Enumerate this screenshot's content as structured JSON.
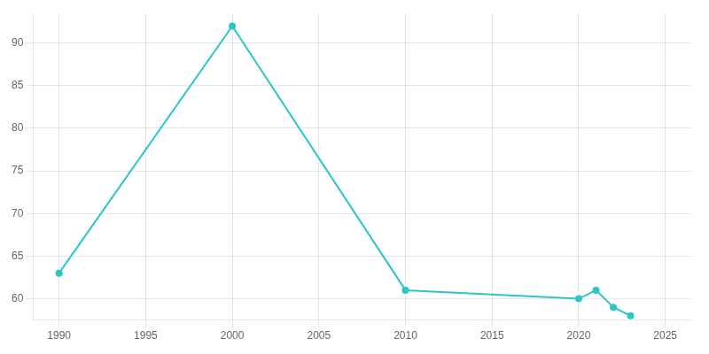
{
  "chart_data": {
    "type": "line",
    "x": [
      1990,
      2000,
      2010,
      2020,
      2021,
      2022,
      2023
    ],
    "values": [
      63,
      92,
      61,
      60,
      61,
      59,
      58
    ],
    "color": "#2DC5C5",
    "marker": "circle",
    "xlim": [
      1988.5,
      2026.5
    ],
    "ylim": [
      57.5,
      93.5
    ],
    "xticks": [
      1990,
      1995,
      2000,
      2005,
      2010,
      2015,
      2020,
      2025
    ],
    "yticks": [
      60,
      65,
      70,
      75,
      80,
      85,
      90
    ],
    "grid": true
  }
}
